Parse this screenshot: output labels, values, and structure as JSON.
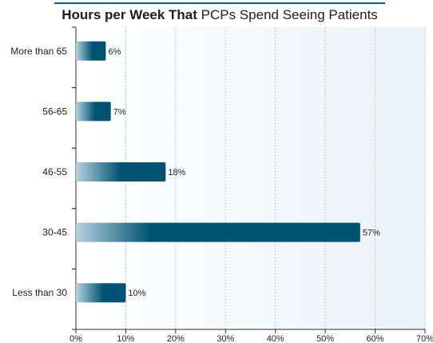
{
  "title": {
    "bold": "Hours per Week That",
    "rest": "PCPs Spend Seeing Patients"
  },
  "colors": {
    "bar_dark": "#005273",
    "bar_light": "#b6d2df",
    "plot_bg_left": "#ffffff",
    "plot_bg_right": "#e9f3f9",
    "grid": "#a7b1b6",
    "axis": "#2c2c2c",
    "title_rule": "#0f5c7e"
  },
  "chart_data": {
    "type": "bar",
    "orientation": "horizontal",
    "title": "Hours per Week That PCPs Spend Seeing Patients",
    "categories": [
      "More than 65",
      "56-65",
      "46-55",
      "30-45",
      "Less than 30"
    ],
    "values": [
      6,
      7,
      18,
      57,
      10
    ],
    "value_labels": [
      "6%",
      "7%",
      "18%",
      "57%",
      "10%"
    ],
    "x_ticks": [
      0,
      10,
      20,
      30,
      40,
      50,
      60,
      70
    ],
    "x_tick_labels": [
      "0%",
      "10%",
      "20%",
      "30%",
      "40%",
      "50%",
      "60%",
      "70%"
    ],
    "xlim": [
      0,
      70
    ],
    "grid": "vertical dotted"
  }
}
